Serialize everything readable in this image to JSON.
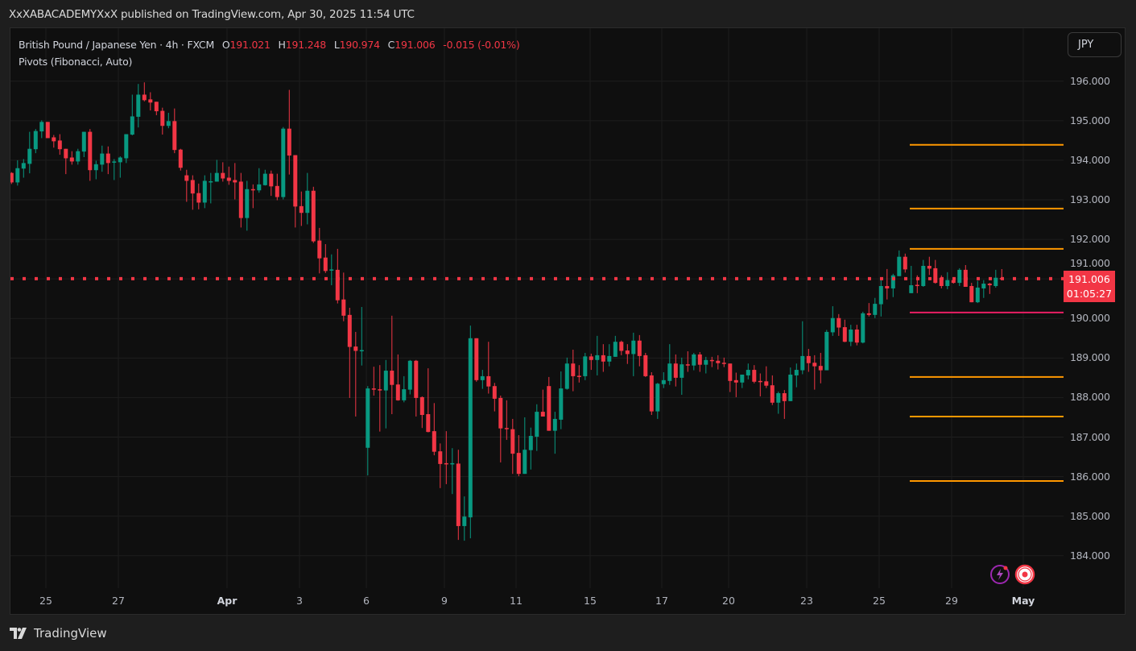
{
  "publish_line": "XxXABACADEMYXxX published on TradingView.com, Apr 30, 2025 11:54 UTC",
  "legend": {
    "symbol": "British Pound / Japanese Yen · 4h · FXCM",
    "open_label": "O",
    "open": "191.021",
    "high_label": "H",
    "high": "191.248",
    "low_label": "L",
    "low": "190.974",
    "close_label": "C",
    "close": "191.006",
    "change": "-0.015 (-0.01%)",
    "indicator": "Pivots (Fibonacci, Auto)"
  },
  "currency_button": "JPY",
  "last_price": {
    "value": "191.006",
    "countdown": "01:05:27"
  },
  "footer_brand": "TradingView",
  "colors": {
    "up": "#089981",
    "down": "#f23645",
    "pivot_p": "#e91e63",
    "pivot_sr": "#ff9800",
    "background": "#0f0f0f"
  },
  "icons": [
    "lightning-circle-icon",
    "record-target-icon",
    "tradingview-logo-icon"
  ],
  "chart_data": {
    "type": "candlestick",
    "timeframe": "4h",
    "ylim": [
      183.18,
      197.34
    ],
    "grid": true,
    "y_ticks": [
      "196.000",
      "195.000",
      "194.000",
      "193.000",
      "192.000",
      "191.000",
      "190.000",
      "189.000",
      "188.000",
      "187.000",
      "186.000",
      "185.000",
      "184.000"
    ],
    "x_ticks": [
      {
        "label": "25",
        "major": false
      },
      {
        "label": "27",
        "major": false
      },
      {
        "label": "Apr",
        "major": true
      },
      {
        "label": "3",
        "major": false
      },
      {
        "label": "6",
        "major": false
      },
      {
        "label": "9",
        "major": false
      },
      {
        "label": "11",
        "major": false
      },
      {
        "label": "15",
        "major": false
      },
      {
        "label": "17",
        "major": false
      },
      {
        "label": "20",
        "major": false
      },
      {
        "label": "23",
        "major": false
      },
      {
        "label": "25",
        "major": false
      },
      {
        "label": "29",
        "major": false
      },
      {
        "label": "May",
        "major": true
      }
    ],
    "last_price": 191.006,
    "pivot_levels": [
      {
        "level": "R3",
        "value": 194.39
      },
      {
        "level": "R2",
        "value": 192.78
      },
      {
        "level": "R1",
        "value": 191.76
      },
      {
        "level": "P",
        "value": 190.15
      },
      {
        "level": "S1",
        "value": 188.52
      },
      {
        "level": "S2",
        "value": 187.52
      },
      {
        "level": "S3",
        "value": 185.89
      }
    ],
    "candles_ohlc": [
      [
        193.68,
        193.7,
        193.4,
        193.44
      ],
      [
        193.44,
        194.0,
        193.36,
        193.8
      ],
      [
        193.79,
        194.03,
        193.56,
        193.93
      ],
      [
        193.91,
        194.72,
        193.67,
        194.29
      ],
      [
        194.28,
        194.79,
        194.18,
        194.74
      ],
      [
        194.73,
        195.01,
        194.56,
        194.97
      ],
      [
        194.97,
        194.97,
        194.56,
        194.56
      ],
      [
        194.58,
        194.64,
        194.32,
        194.48
      ],
      [
        194.5,
        194.66,
        194.14,
        194.28
      ],
      [
        194.29,
        194.29,
        193.65,
        194.05
      ],
      [
        194.07,
        194.23,
        193.89,
        193.97
      ],
      [
        193.97,
        194.29,
        193.89,
        194.23
      ],
      [
        194.22,
        194.72,
        194.08,
        194.72
      ],
      [
        194.72,
        194.79,
        193.48,
        193.75
      ],
      [
        193.75,
        193.99,
        193.52,
        193.9
      ],
      [
        193.89,
        194.37,
        193.71,
        194.17
      ],
      [
        194.17,
        194.35,
        193.65,
        193.93
      ],
      [
        193.96,
        194.03,
        193.5,
        193.97
      ],
      [
        193.95,
        194.1,
        193.56,
        194.07
      ],
      [
        194.05,
        194.66,
        193.93,
        194.66
      ],
      [
        194.65,
        195.66,
        194.63,
        195.11
      ],
      [
        195.1,
        195.93,
        194.83,
        195.66
      ],
      [
        195.66,
        195.97,
        195.49,
        195.52
      ],
      [
        195.54,
        195.72,
        195.26,
        195.46
      ],
      [
        195.48,
        195.48,
        195.14,
        195.24
      ],
      [
        195.25,
        195.33,
        194.65,
        194.87
      ],
      [
        194.87,
        195.2,
        194.81,
        194.99
      ],
      [
        194.99,
        195.31,
        194.18,
        194.26
      ],
      [
        194.27,
        194.29,
        193.74,
        193.81
      ],
      [
        193.62,
        193.76,
        192.95,
        193.48
      ],
      [
        193.5,
        193.62,
        192.75,
        193.16
      ],
      [
        193.17,
        193.41,
        192.76,
        192.93
      ],
      [
        192.93,
        193.62,
        192.79,
        193.48
      ],
      [
        193.47,
        193.68,
        192.91,
        193.47
      ],
      [
        193.46,
        194.01,
        193.46,
        193.68
      ],
      [
        193.68,
        193.95,
        193.46,
        193.54
      ],
      [
        193.56,
        193.84,
        193.38,
        193.48
      ],
      [
        193.5,
        193.93,
        193.01,
        193.44
      ],
      [
        193.46,
        193.68,
        192.3,
        192.54
      ],
      [
        192.54,
        193.48,
        192.22,
        193.27
      ],
      [
        193.27,
        193.39,
        192.79,
        193.26
      ],
      [
        193.24,
        193.8,
        193.18,
        193.39
      ],
      [
        193.37,
        193.76,
        193.36,
        193.66
      ],
      [
        193.66,
        193.74,
        193.1,
        193.34
      ],
      [
        193.35,
        193.66,
        192.99,
        193.07
      ],
      [
        193.07,
        194.84,
        193.01,
        194.8
      ],
      [
        194.8,
        195.78,
        193.64,
        194.12
      ],
      [
        194.13,
        194.13,
        192.3,
        192.83
      ],
      [
        192.84,
        193.21,
        192.34,
        192.67
      ],
      [
        192.67,
        193.68,
        192.38,
        193.23
      ],
      [
        193.23,
        193.33,
        191.91,
        191.95
      ],
      [
        191.97,
        192.29,
        191.14,
        191.52
      ],
      [
        191.54,
        191.88,
        191.15,
        191.2
      ],
      [
        191.21,
        191.62,
        190.84,
        191.24
      ],
      [
        191.23,
        191.76,
        190.38,
        190.46
      ],
      [
        190.48,
        191.16,
        189.93,
        190.07
      ],
      [
        190.09,
        190.27,
        187.99,
        189.28
      ],
      [
        189.29,
        189.66,
        187.52,
        189.18
      ],
      [
        189.2,
        190.29,
        188.81,
        189.2
      ],
      [
        186.73,
        188.29,
        186.03,
        188.23
      ],
      [
        188.23,
        188.78,
        188.05,
        188.2
      ],
      [
        188.21,
        188.82,
        187.14,
        188.18
      ],
      [
        188.18,
        188.95,
        187.22,
        188.68
      ],
      [
        188.68,
        190.07,
        187.58,
        188.32
      ],
      [
        188.33,
        189.09,
        187.92,
        187.93
      ],
      [
        187.93,
        188.54,
        187.88,
        188.21
      ],
      [
        188.2,
        188.95,
        188.08,
        188.93
      ],
      [
        188.93,
        188.95,
        187.52,
        187.99
      ],
      [
        188.01,
        188.03,
        187.23,
        187.56
      ],
      [
        187.58,
        188.74,
        187.12,
        187.13
      ],
      [
        187.15,
        187.86,
        186.54,
        186.63
      ],
      [
        186.64,
        186.84,
        185.71,
        186.32
      ],
      [
        186.34,
        187.15,
        185.81,
        186.33
      ],
      [
        186.33,
        186.72,
        185.56,
        186.34
      ],
      [
        186.33,
        186.68,
        184.4,
        184.75
      ],
      [
        184.75,
        185.5,
        184.38,
        184.99
      ],
      [
        184.97,
        189.82,
        184.44,
        189.5
      ],
      [
        189.5,
        189.5,
        188.4,
        188.44
      ],
      [
        188.44,
        188.7,
        188.22,
        188.54
      ],
      [
        188.54,
        189.41,
        188.1,
        188.28
      ],
      [
        188.29,
        188.37,
        187.65,
        187.97
      ],
      [
        187.99,
        188.05,
        186.36,
        187.22
      ],
      [
        187.23,
        187.93,
        186.93,
        187.22
      ],
      [
        187.2,
        187.46,
        186.07,
        186.58
      ],
      [
        186.6,
        187.05,
        186.01,
        186.07
      ],
      [
        186.07,
        187.5,
        186.07,
        186.68
      ],
      [
        186.67,
        187.24,
        186.18,
        187.03
      ],
      [
        187.01,
        187.83,
        186.65,
        187.64
      ],
      [
        187.64,
        188.2,
        187.52,
        187.52
      ],
      [
        188.29,
        188.52,
        187.16,
        187.16
      ],
      [
        187.16,
        187.64,
        186.58,
        187.46
      ],
      [
        187.44,
        188.66,
        187.2,
        188.23
      ],
      [
        188.22,
        189.01,
        188.2,
        188.86
      ],
      [
        188.86,
        189.21,
        188.16,
        188.54
      ],
      [
        188.55,
        188.82,
        188.38,
        188.54
      ],
      [
        188.54,
        189.13,
        188.44,
        189.04
      ],
      [
        189.04,
        189.11,
        188.7,
        188.95
      ],
      [
        188.95,
        189.56,
        188.56,
        189.07
      ],
      [
        189.07,
        189.35,
        188.65,
        188.91
      ],
      [
        188.91,
        189.35,
        188.79,
        189.05
      ],
      [
        189.03,
        189.56,
        189.03,
        189.41
      ],
      [
        189.41,
        189.44,
        189.07,
        189.18
      ],
      [
        189.19,
        189.35,
        188.85,
        189.1
      ],
      [
        189.1,
        189.64,
        188.54,
        189.44
      ],
      [
        189.44,
        189.58,
        188.79,
        189.05
      ],
      [
        189.07,
        189.13,
        188.52,
        188.54
      ],
      [
        188.56,
        188.64,
        187.56,
        187.65
      ],
      [
        187.65,
        188.37,
        187.46,
        188.35
      ],
      [
        188.34,
        188.64,
        188.24,
        188.44
      ],
      [
        188.42,
        189.35,
        188.32,
        188.86
      ],
      [
        188.86,
        189.09,
        188.28,
        188.5
      ],
      [
        188.5,
        189.01,
        188.07,
        188.84
      ],
      [
        188.84,
        189.17,
        188.65,
        188.83
      ],
      [
        188.81,
        189.13,
        188.69,
        189.09
      ],
      [
        189.09,
        189.15,
        188.65,
        188.83
      ],
      [
        188.83,
        189.03,
        188.61,
        188.95
      ],
      [
        188.95,
        189.03,
        188.77,
        188.94
      ],
      [
        188.93,
        189.07,
        188.71,
        188.87
      ],
      [
        188.88,
        189.01,
        188.77,
        188.87
      ],
      [
        188.86,
        188.86,
        188.14,
        188.42
      ],
      [
        188.44,
        188.63,
        188.01,
        188.38
      ],
      [
        188.38,
        188.58,
        188.24,
        188.58
      ],
      [
        188.56,
        188.86,
        188.46,
        188.7
      ],
      [
        188.7,
        188.82,
        188.36,
        188.4
      ],
      [
        188.42,
        188.61,
        188.03,
        188.41
      ],
      [
        188.41,
        188.79,
        188.24,
        188.3
      ],
      [
        188.31,
        188.56,
        187.81,
        187.87
      ],
      [
        187.87,
        188.15,
        187.59,
        188.11
      ],
      [
        188.11,
        188.19,
        187.46,
        187.91
      ],
      [
        187.91,
        188.76,
        187.91,
        188.58
      ],
      [
        188.56,
        188.86,
        188.26,
        188.7
      ],
      [
        188.69,
        189.93,
        188.59,
        189.05
      ],
      [
        189.05,
        189.23,
        188.65,
        188.87
      ],
      [
        188.88,
        189.07,
        188.2,
        188.79
      ],
      [
        188.8,
        189.13,
        188.36,
        188.69
      ],
      [
        188.69,
        189.71,
        188.69,
        189.66
      ],
      [
        189.65,
        190.31,
        189.56,
        190.01
      ],
      [
        190.01,
        190.11,
        189.56,
        189.77
      ],
      [
        189.78,
        189.97,
        189.4,
        189.41
      ],
      [
        189.41,
        189.84,
        189.3,
        189.72
      ],
      [
        189.72,
        189.84,
        189.32,
        189.39
      ],
      [
        189.39,
        190.17,
        189.37,
        190.13
      ],
      [
        190.13,
        190.39,
        190.05,
        190.09
      ],
      [
        190.09,
        190.52,
        190.01,
        190.37
      ],
      [
        190.36,
        191.01,
        190.05,
        190.82
      ],
      [
        190.82,
        191.25,
        190.48,
        190.76
      ],
      [
        190.76,
        191.13,
        190.54,
        191.09
      ],
      [
        191.07,
        191.72,
        191.07,
        191.56
      ],
      [
        191.56,
        191.64,
        191.16,
        191.24
      ],
      [
        190.64,
        191.33,
        190.64,
        190.84
      ],
      [
        190.85,
        191.09,
        190.64,
        190.84
      ],
      [
        190.82,
        191.48,
        190.8,
        191.33
      ],
      [
        191.33,
        191.56,
        191.1,
        191.26
      ],
      [
        191.27,
        191.48,
        190.88,
        190.9
      ],
      [
        191.03,
        191.09,
        190.76,
        190.82
      ],
      [
        190.82,
        191.17,
        190.74,
        190.97
      ],
      [
        190.97,
        191.03,
        190.88,
        190.9
      ],
      [
        190.9,
        191.27,
        190.82,
        191.23
      ],
      [
        191.23,
        191.35,
        190.8,
        190.8
      ],
      [
        190.82,
        190.9,
        190.41,
        190.41
      ],
      [
        190.41,
        190.95,
        190.39,
        190.78
      ],
      [
        190.76,
        190.97,
        190.52,
        190.88
      ],
      [
        190.88,
        190.9,
        190.62,
        190.84
      ],
      [
        190.82,
        191.23,
        190.78,
        191.03
      ],
      [
        191.021,
        191.248,
        190.974,
        191.006
      ]
    ]
  }
}
